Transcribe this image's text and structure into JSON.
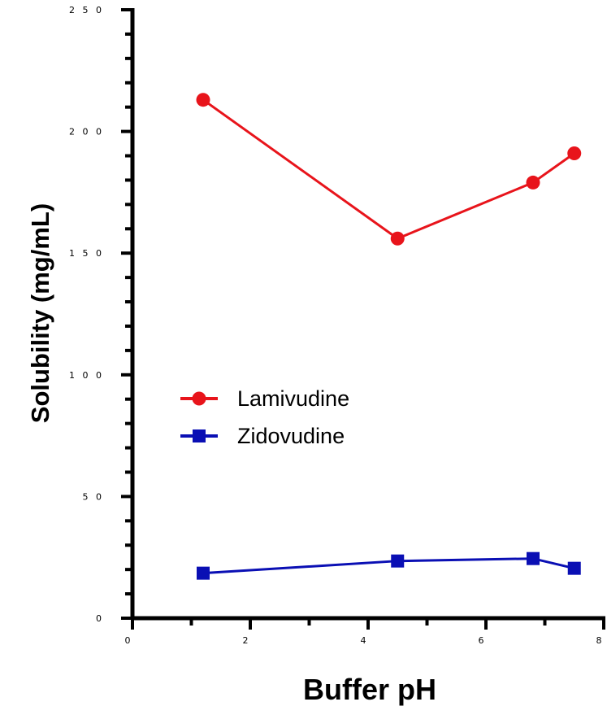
{
  "chart_data": {
    "type": "line",
    "title": "",
    "xlabel": "Buffer pH",
    "ylabel": "Solubility (mg/mL)",
    "xlim": [
      0,
      8
    ],
    "ylim": [
      0,
      250
    ],
    "xticks": [
      "0",
      "2",
      "4",
      "6",
      "8"
    ],
    "yticks": [
      "0",
      "5 0",
      "1 0 0",
      "1 5 0",
      "2 0 0",
      "2 5 0"
    ],
    "grid": false,
    "legend_position": "center-left",
    "series": [
      {
        "name": "Lamivudine",
        "color": "#e8141b",
        "marker": "circle",
        "x": [
          1.2,
          4.5,
          6.8,
          7.5
        ],
        "y": [
          213,
          156,
          179,
          191
        ]
      },
      {
        "name": "Zidovudine",
        "color": "#0a0fb4",
        "marker": "square",
        "x": [
          1.2,
          4.5,
          6.8,
          7.5
        ],
        "y": [
          18.5,
          23.5,
          24.5,
          20.5
        ]
      }
    ]
  }
}
